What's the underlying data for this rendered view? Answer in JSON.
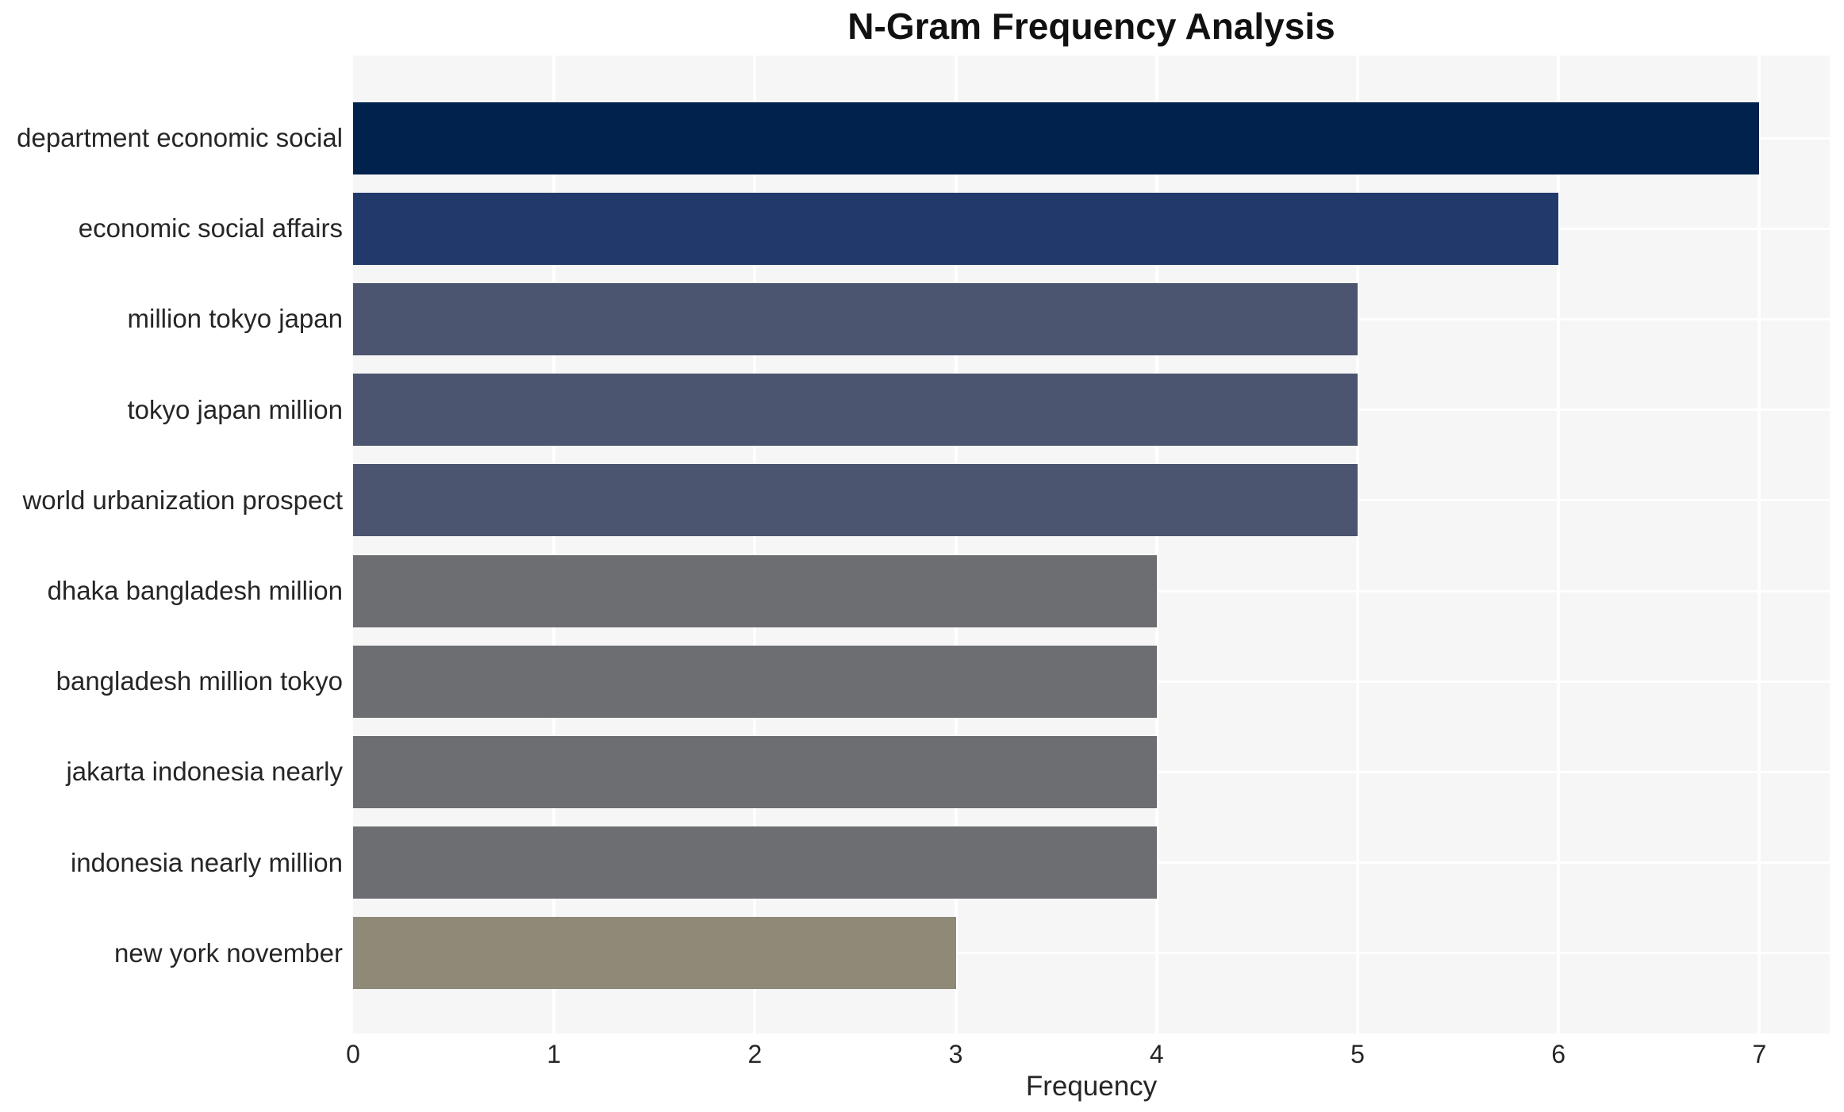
{
  "chart_data": {
    "type": "bar",
    "orientation": "horizontal",
    "title": "N-Gram Frequency Analysis",
    "xlabel": "Frequency",
    "ylabel": "",
    "categories": [
      "department economic social",
      "economic social affairs",
      "million tokyo japan",
      "tokyo japan million",
      "world urbanization prospect",
      "dhaka bangladesh million",
      "bangladesh million tokyo",
      "jakarta indonesia nearly",
      "indonesia nearly million",
      "new york november"
    ],
    "values": [
      7,
      6,
      5,
      5,
      5,
      4,
      4,
      4,
      4,
      3
    ],
    "bar_colors": [
      "#00224d",
      "#223a6b",
      "#4c556f",
      "#4c556f",
      "#4c556f",
      "#6c6e71",
      "#6c6e71",
      "#6c6e71",
      "#6c6e71",
      "#8f8978"
    ],
    "xlim": [
      0,
      7.35
    ],
    "xticks": [
      0,
      1,
      2,
      3,
      4,
      5,
      6,
      7
    ],
    "grid": true,
    "legend": "none",
    "plot_bg_color": "#f6f6f7",
    "grid_color": "#ffffff",
    "text_color": "#262626",
    "title_color": "#111111"
  }
}
